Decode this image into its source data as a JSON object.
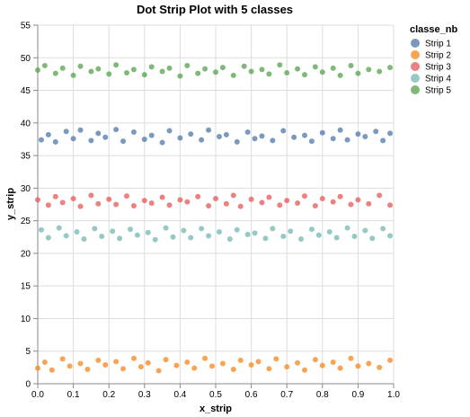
{
  "chart_data": {
    "type": "scatter",
    "title": "Dot Strip Plot with 5 classes",
    "xlabel": "x_strip",
    "ylabel": "y_strip",
    "xlim": [
      0,
      1
    ],
    "ylim": [
      0,
      55
    ],
    "xticks": [
      "0.0",
      "0.1",
      "0.2",
      "0.3",
      "0.4",
      "0.5",
      "0.6",
      "0.7",
      "0.8",
      "0.9",
      "1.0"
    ],
    "yticks": [
      "0",
      "5",
      "10",
      "15",
      "20",
      "25",
      "30",
      "35",
      "40",
      "45",
      "50",
      "55"
    ],
    "grid": true,
    "legend": {
      "title": "classe_nb",
      "position": "top-right"
    },
    "series": [
      {
        "name": "Strip 1",
        "color": "#4c78a8",
        "points": [
          [
            0.01,
            37.4
          ],
          [
            0.03,
            38.2
          ],
          [
            0.05,
            37.1
          ],
          [
            0.08,
            38.7
          ],
          [
            0.1,
            37.6
          ],
          [
            0.12,
            38.9
          ],
          [
            0.15,
            37.3
          ],
          [
            0.17,
            38.4
          ],
          [
            0.19,
            37.8
          ],
          [
            0.22,
            39.0
          ],
          [
            0.24,
            37.2
          ],
          [
            0.27,
            38.6
          ],
          [
            0.3,
            37.5
          ],
          [
            0.32,
            38.1
          ],
          [
            0.35,
            37.0
          ],
          [
            0.37,
            38.8
          ],
          [
            0.4,
            37.7
          ],
          [
            0.43,
            38.3
          ],
          [
            0.46,
            37.4
          ],
          [
            0.48,
            38.9
          ],
          [
            0.51,
            37.9
          ],
          [
            0.53,
            38.2
          ],
          [
            0.56,
            37.1
          ],
          [
            0.59,
            38.6
          ],
          [
            0.61,
            37.6
          ],
          [
            0.63,
            38.0
          ],
          [
            0.66,
            37.3
          ],
          [
            0.69,
            38.8
          ],
          [
            0.72,
            37.8
          ],
          [
            0.75,
            38.1
          ],
          [
            0.77,
            37.2
          ],
          [
            0.8,
            38.5
          ],
          [
            0.83,
            37.6
          ],
          [
            0.85,
            38.9
          ],
          [
            0.87,
            37.4
          ],
          [
            0.9,
            38.3
          ],
          [
            0.92,
            37.9
          ],
          [
            0.95,
            38.7
          ],
          [
            0.97,
            37.3
          ],
          [
            0.99,
            38.4
          ]
        ]
      },
      {
        "name": "Strip 2",
        "color": "#f58518",
        "points": [
          [
            0.0,
            2.4
          ],
          [
            0.02,
            3.3
          ],
          [
            0.04,
            2.1
          ],
          [
            0.07,
            3.8
          ],
          [
            0.09,
            2.7
          ],
          [
            0.12,
            3.1
          ],
          [
            0.14,
            2.2
          ],
          [
            0.17,
            3.6
          ],
          [
            0.19,
            2.9
          ],
          [
            0.22,
            3.4
          ],
          [
            0.24,
            2.3
          ],
          [
            0.27,
            3.9
          ],
          [
            0.29,
            2.6
          ],
          [
            0.31,
            3.2
          ],
          [
            0.34,
            2.0
          ],
          [
            0.36,
            3.7
          ],
          [
            0.39,
            2.8
          ],
          [
            0.42,
            3.3
          ],
          [
            0.44,
            2.4
          ],
          [
            0.47,
            3.9
          ],
          [
            0.49,
            2.7
          ],
          [
            0.52,
            3.1
          ],
          [
            0.55,
            2.2
          ],
          [
            0.57,
            3.6
          ],
          [
            0.6,
            2.9
          ],
          [
            0.62,
            3.4
          ],
          [
            0.65,
            2.3
          ],
          [
            0.67,
            3.8
          ],
          [
            0.7,
            2.6
          ],
          [
            0.73,
            3.2
          ],
          [
            0.75,
            2.1
          ],
          [
            0.78,
            3.7
          ],
          [
            0.8,
            2.8
          ],
          [
            0.83,
            3.3
          ],
          [
            0.85,
            2.4
          ],
          [
            0.88,
            3.9
          ],
          [
            0.9,
            2.7
          ],
          [
            0.93,
            3.1
          ],
          [
            0.96,
            2.5
          ],
          [
            0.99,
            3.6
          ]
        ]
      },
      {
        "name": "Strip 3",
        "color": "#e45756",
        "points": [
          [
            0.0,
            28.2
          ],
          [
            0.03,
            27.4
          ],
          [
            0.05,
            28.7
          ],
          [
            0.07,
            27.8
          ],
          [
            0.1,
            28.4
          ],
          [
            0.12,
            27.2
          ],
          [
            0.15,
            28.9
          ],
          [
            0.17,
            27.6
          ],
          [
            0.2,
            28.3
          ],
          [
            0.22,
            27.5
          ],
          [
            0.25,
            28.8
          ],
          [
            0.27,
            27.3
          ],
          [
            0.3,
            28.1
          ],
          [
            0.32,
            27.7
          ],
          [
            0.35,
            28.6
          ],
          [
            0.37,
            27.4
          ],
          [
            0.4,
            28.2
          ],
          [
            0.42,
            27.9
          ],
          [
            0.45,
            28.7
          ],
          [
            0.48,
            27.3
          ],
          [
            0.5,
            28.4
          ],
          [
            0.53,
            27.6
          ],
          [
            0.55,
            28.9
          ],
          [
            0.57,
            27.2
          ],
          [
            0.6,
            28.3
          ],
          [
            0.63,
            27.8
          ],
          [
            0.65,
            28.6
          ],
          [
            0.68,
            27.4
          ],
          [
            0.7,
            28.1
          ],
          [
            0.73,
            27.7
          ],
          [
            0.75,
            28.8
          ],
          [
            0.78,
            27.3
          ],
          [
            0.8,
            28.4
          ],
          [
            0.83,
            27.9
          ],
          [
            0.85,
            28.7
          ],
          [
            0.88,
            27.5
          ],
          [
            0.9,
            28.2
          ],
          [
            0.93,
            27.6
          ],
          [
            0.96,
            28.9
          ],
          [
            0.99,
            27.4
          ]
        ]
      },
      {
        "name": "Strip 4",
        "color": "#72b7b2",
        "points": [
          [
            0.01,
            23.6
          ],
          [
            0.03,
            22.4
          ],
          [
            0.06,
            23.9
          ],
          [
            0.08,
            22.7
          ],
          [
            0.11,
            23.3
          ],
          [
            0.13,
            22.2
          ],
          [
            0.16,
            23.8
          ],
          [
            0.18,
            22.6
          ],
          [
            0.21,
            23.4
          ],
          [
            0.23,
            22.3
          ],
          [
            0.26,
            23.7
          ],
          [
            0.28,
            22.8
          ],
          [
            0.31,
            23.2
          ],
          [
            0.33,
            22.1
          ],
          [
            0.36,
            23.9
          ],
          [
            0.38,
            22.5
          ],
          [
            0.41,
            23.5
          ],
          [
            0.43,
            22.4
          ],
          [
            0.46,
            23.8
          ],
          [
            0.48,
            22.7
          ],
          [
            0.51,
            23.3
          ],
          [
            0.54,
            22.2
          ],
          [
            0.56,
            23.6
          ],
          [
            0.59,
            22.9
          ],
          [
            0.61,
            23.1
          ],
          [
            0.64,
            22.3
          ],
          [
            0.66,
            23.8
          ],
          [
            0.69,
            22.6
          ],
          [
            0.71,
            23.4
          ],
          [
            0.74,
            22.2
          ],
          [
            0.77,
            23.7
          ],
          [
            0.79,
            22.8
          ],
          [
            0.82,
            23.3
          ],
          [
            0.84,
            22.4
          ],
          [
            0.87,
            23.9
          ],
          [
            0.89,
            22.6
          ],
          [
            0.92,
            23.5
          ],
          [
            0.94,
            22.3
          ],
          [
            0.97,
            23.8
          ],
          [
            0.99,
            22.7
          ]
        ]
      },
      {
        "name": "Strip 5",
        "color": "#54a24b",
        "points": [
          [
            0.0,
            48.1
          ],
          [
            0.02,
            48.8
          ],
          [
            0.05,
            47.6
          ],
          [
            0.07,
            48.4
          ],
          [
            0.1,
            47.3
          ],
          [
            0.12,
            48.7
          ],
          [
            0.15,
            47.9
          ],
          [
            0.17,
            48.3
          ],
          [
            0.2,
            47.5
          ],
          [
            0.22,
            48.9
          ],
          [
            0.25,
            47.7
          ],
          [
            0.27,
            48.2
          ],
          [
            0.3,
            47.4
          ],
          [
            0.32,
            48.6
          ],
          [
            0.35,
            47.9
          ],
          [
            0.37,
            48.4
          ],
          [
            0.4,
            47.2
          ],
          [
            0.42,
            48.8
          ],
          [
            0.45,
            47.6
          ],
          [
            0.47,
            48.3
          ],
          [
            0.5,
            47.8
          ],
          [
            0.52,
            48.5
          ],
          [
            0.55,
            47.3
          ],
          [
            0.58,
            48.7
          ],
          [
            0.6,
            47.9
          ],
          [
            0.63,
            48.2
          ],
          [
            0.65,
            47.5
          ],
          [
            0.68,
            48.9
          ],
          [
            0.7,
            47.7
          ],
          [
            0.73,
            48.3
          ],
          [
            0.75,
            47.4
          ],
          [
            0.78,
            48.6
          ],
          [
            0.8,
            47.8
          ],
          [
            0.83,
            48.4
          ],
          [
            0.85,
            47.3
          ],
          [
            0.88,
            48.8
          ],
          [
            0.9,
            47.6
          ],
          [
            0.93,
            48.2
          ],
          [
            0.96,
            47.9
          ],
          [
            0.99,
            48.5
          ]
        ]
      }
    ]
  }
}
